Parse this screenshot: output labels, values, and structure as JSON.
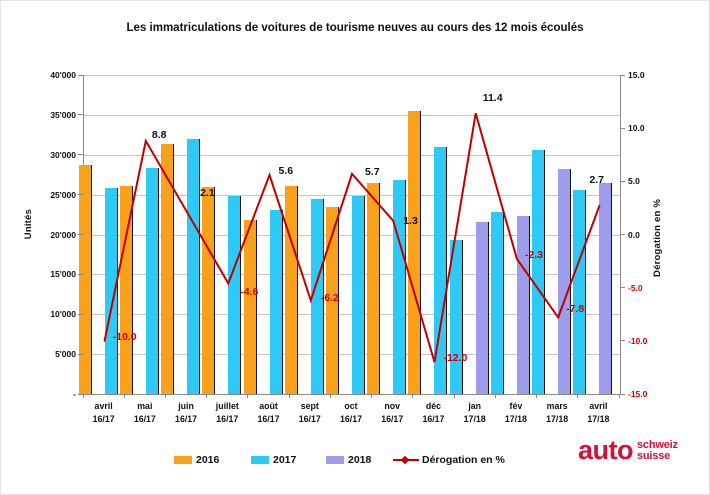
{
  "title": "Les immatriculations de voitures de tourisme neuves au cours des 12 mois écoulés",
  "chart_data": {
    "type": "bar",
    "subtype": "grouped-bars-with-line-overlay",
    "categories": [
      {
        "month": "avril",
        "years": "16/17"
      },
      {
        "month": "mai",
        "years": "16/17"
      },
      {
        "month": "juin",
        "years": "16/17"
      },
      {
        "month": "juillet",
        "years": "16/17"
      },
      {
        "month": "août",
        "years": "16/17"
      },
      {
        "month": "sept",
        "years": "16/17"
      },
      {
        "month": "oct",
        "years": "16/17"
      },
      {
        "month": "nov",
        "years": "16/17"
      },
      {
        "month": "déc",
        "years": "16/17"
      },
      {
        "month": "jan",
        "years": "17/18"
      },
      {
        "month": "fév",
        "years": "17/18"
      },
      {
        "month": "mars",
        "years": "17/18"
      },
      {
        "month": "avril",
        "years": "17/18"
      }
    ],
    "series": [
      {
        "name": "2016",
        "color": "#F9A11B",
        "values": [
          28700,
          26100,
          31300,
          26000,
          21800,
          26100,
          23400,
          26400,
          35500,
          null,
          null,
          null,
          null
        ]
      },
      {
        "name": "2017",
        "color": "#2EC9F4",
        "values": [
          25800,
          28400,
          32000,
          24800,
          23100,
          24500,
          24800,
          26800,
          31000,
          19300,
          22800,
          30600,
          25600
        ]
      },
      {
        "name": "2018",
        "color": "#9D9DEB",
        "values": [
          null,
          null,
          null,
          null,
          null,
          null,
          null,
          null,
          null,
          21600,
          22300,
          28200,
          26500
        ]
      }
    ],
    "line_series": {
      "name": "Dérogation en %",
      "color": "#C00000",
      "values": [
        -10.0,
        8.8,
        2.1,
        -4.6,
        5.6,
        -6.2,
        5.7,
        1.3,
        -12.0,
        11.4,
        -2.3,
        -7.8,
        2.7
      ],
      "labels": [
        "-10.0",
        "8.8",
        "2.1",
        "-4.6",
        "5.6",
        "-6.2",
        "5.7",
        "1.3",
        "-12.0",
        "11.4",
        "-2.3",
        "-7.8",
        "2.7"
      ]
    },
    "left_axis": {
      "title": "Unités",
      "min": 0,
      "max": 40000,
      "step": 5000,
      "tick_labels": [
        "40'000",
        "35'000",
        "30'000",
        "25'000",
        "20'000",
        "15'000",
        "10'000",
        "5'000",
        "-"
      ]
    },
    "right_axis": {
      "title": "Dérogation en %",
      "min": -15.0,
      "max": 15.0,
      "step": 5.0,
      "tick_labels": [
        "15.0",
        "10.0",
        "5.0",
        "0.0",
        "-5.0",
        "-10.0",
        "-15.0"
      ],
      "negative_color": "#D00000"
    },
    "grid": true,
    "legend_position": "bottom"
  },
  "legend": {
    "items": [
      {
        "label": "2016",
        "type": "swatch",
        "color": "#F9A11B"
      },
      {
        "label": "2017",
        "type": "swatch",
        "color": "#2EC9F4"
      },
      {
        "label": "2018",
        "type": "swatch",
        "color": "#9D9DEB"
      },
      {
        "label": "Dérogation en %",
        "type": "line",
        "color": "#C00000"
      }
    ]
  },
  "logo": {
    "word": "auto",
    "sub_line1": "schweiz",
    "sub_line2": "suisse",
    "color": "#D2123A"
  }
}
